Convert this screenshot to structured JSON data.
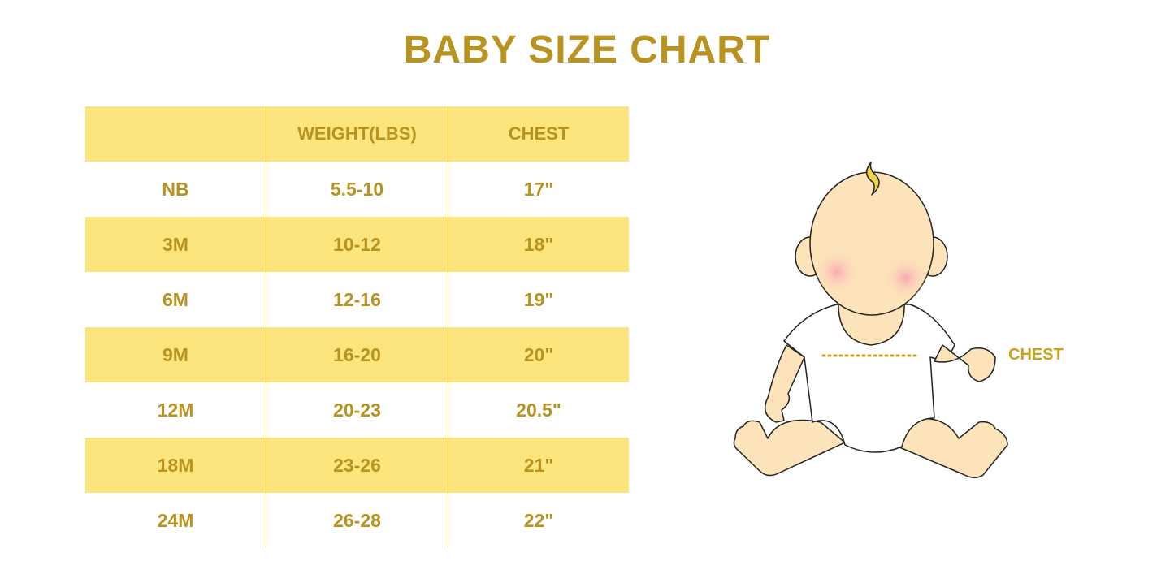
{
  "title": "BABY SIZE CHART",
  "table": {
    "headers": [
      "",
      "WEIGHT(LBS)",
      "CHEST"
    ],
    "rows": [
      [
        "NB",
        "5.5-10",
        "17\""
      ],
      [
        "3M",
        "10-12",
        "18\""
      ],
      [
        "6M",
        "12-16",
        "19\""
      ],
      [
        "9M",
        "16-20",
        "20\""
      ],
      [
        "12M",
        "20-23",
        "20.5\""
      ],
      [
        "18M",
        "23-26",
        "21\""
      ],
      [
        "24M",
        "26-28",
        "22\""
      ]
    ]
  },
  "illustration": {
    "label": "CHEST"
  },
  "colors": {
    "text": "#b8931f",
    "band": "#fce57c",
    "divider": "#f7d23a"
  }
}
